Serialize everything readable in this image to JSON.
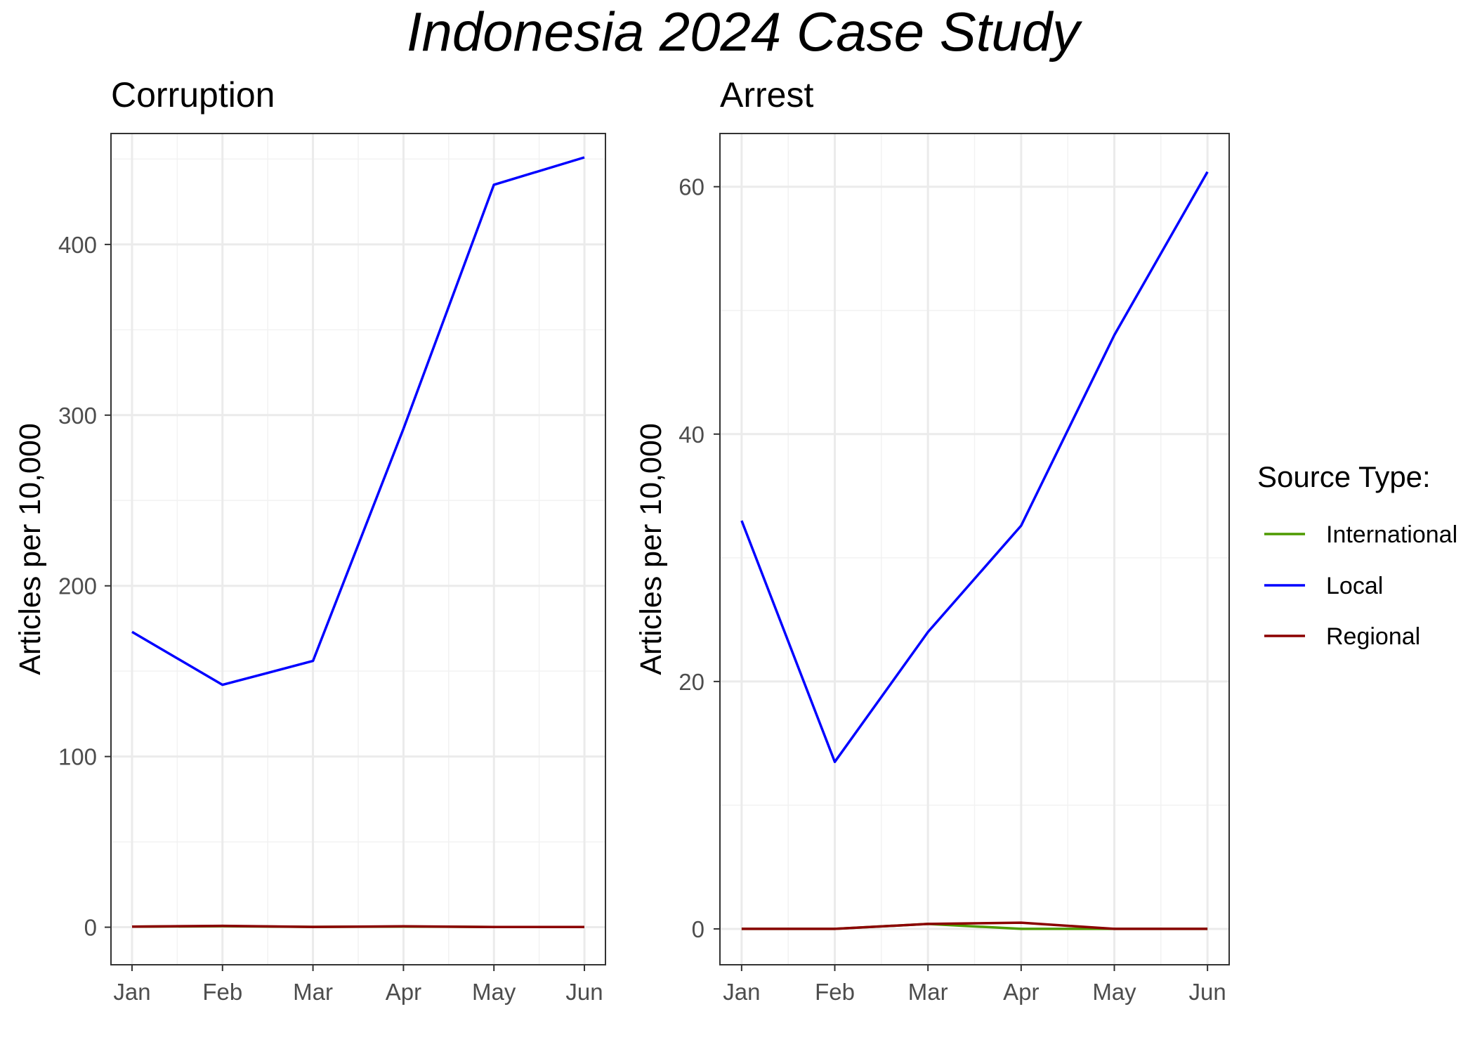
{
  "title": "Indonesia 2024 Case Study",
  "legend": {
    "title": "Source Type:",
    "position": "right",
    "entries": [
      {
        "label": "International",
        "color": "#4d9a00"
      },
      {
        "label": "Local",
        "color": "#0000ff"
      },
      {
        "label": "Regional",
        "color": "#8b0000"
      }
    ]
  },
  "chart_data": [
    {
      "type": "line",
      "title": "Corruption",
      "xlabel": "",
      "ylabel": "Articles per 10,000",
      "categories": [
        "Jan",
        "Feb",
        "Mar",
        "Apr",
        "May",
        "Jun"
      ],
      "ylim": [
        -22,
        465
      ],
      "yticks": [
        0,
        100,
        200,
        300,
        400
      ],
      "grid": true,
      "series": [
        {
          "name": "International",
          "color": "#4d9a00",
          "values": [
            0.3,
            0.6,
            0.2,
            0.4,
            0.1,
            0.1
          ]
        },
        {
          "name": "Local",
          "color": "#0000ff",
          "values": [
            173,
            142,
            156,
            292,
            435,
            451
          ]
        },
        {
          "name": "Regional",
          "color": "#8b0000",
          "values": [
            0.3,
            0.8,
            0.2,
            0.5,
            0.1,
            0.1
          ]
        }
      ]
    },
    {
      "type": "line",
      "title": "Arrest",
      "xlabel": "",
      "ylabel": "Articles per 10,000",
      "categories": [
        "Jan",
        "Feb",
        "Mar",
        "Apr",
        "May",
        "Jun"
      ],
      "ylim": [
        -2.9,
        64.3
      ],
      "yticks": [
        0,
        20,
        40,
        60
      ],
      "grid": true,
      "series": [
        {
          "name": "International",
          "color": "#4d9a00",
          "values": [
            0,
            0,
            0.4,
            0,
            0,
            0
          ]
        },
        {
          "name": "Local",
          "color": "#0000ff",
          "values": [
            33,
            13.5,
            24,
            32.6,
            48,
            61.2
          ]
        },
        {
          "name": "Regional",
          "color": "#8b0000",
          "values": [
            0,
            0,
            0.4,
            0.5,
            0,
            0
          ]
        }
      ]
    }
  ]
}
